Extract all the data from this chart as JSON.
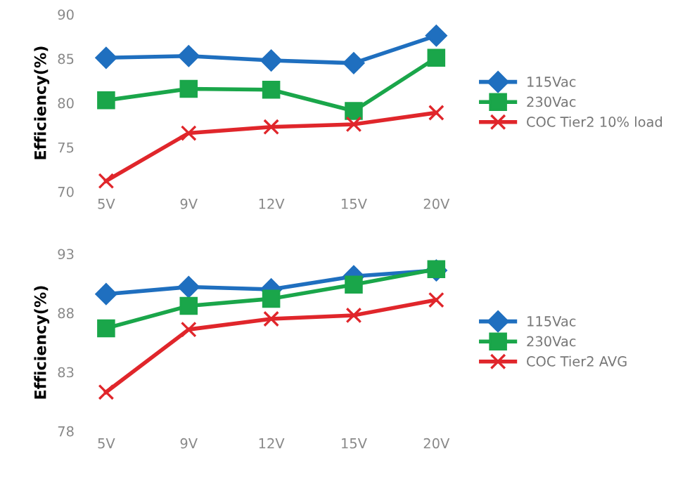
{
  "chart_data": [
    {
      "type": "line",
      "ylabel": "Efficiency(%)",
      "categories": [
        "5V",
        "9V",
        "12V",
        "15V",
        "20V"
      ],
      "ylim": [
        70,
        90
      ],
      "yticks": [
        70,
        75,
        80,
        85,
        90
      ],
      "grid": false,
      "legend": "right",
      "series": [
        {
          "name": "115Vac",
          "color": "#1f6fbf",
          "marker": "diamond",
          "values": [
            85.1,
            85.3,
            84.8,
            84.5,
            87.6
          ]
        },
        {
          "name": "230Vac",
          "color": "#1aa64a",
          "marker": "square",
          "values": [
            80.3,
            81.6,
            81.5,
            79.1,
            85.1
          ]
        },
        {
          "name": "COC Tier2 10% load",
          "color": "#e0262b",
          "marker": "cross",
          "values": [
            71.2,
            76.6,
            77.3,
            77.6,
            78.9
          ]
        }
      ]
    },
    {
      "type": "line",
      "ylabel": "Efficiency(%)",
      "categories": [
        "5V",
        "9V",
        "12V",
        "15V",
        "20V"
      ],
      "ylim": [
        78,
        93
      ],
      "yticks": [
        78,
        83,
        88,
        93
      ],
      "grid": false,
      "legend": "right",
      "series": [
        {
          "name": "115Vac",
          "color": "#1f6fbf",
          "marker": "diamond",
          "values": [
            89.6,
            90.2,
            90.0,
            91.1,
            91.6
          ]
        },
        {
          "name": "230Vac",
          "color": "#1aa64a",
          "marker": "square",
          "values": [
            86.7,
            88.6,
            89.2,
            90.4,
            91.7
          ]
        },
        {
          "name": "COC Tier2 AVG",
          "color": "#e0262b",
          "marker": "cross",
          "values": [
            81.3,
            86.6,
            87.5,
            87.8,
            89.1
          ]
        }
      ]
    }
  ]
}
